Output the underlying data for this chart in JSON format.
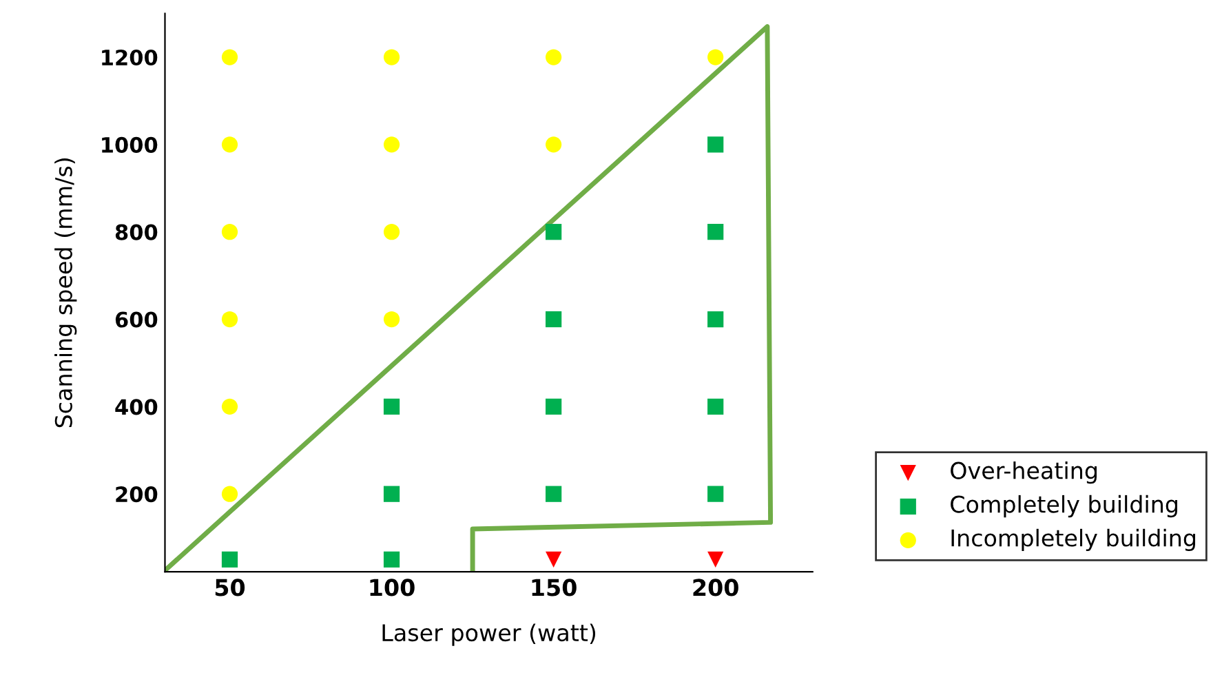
{
  "chart_data": {
    "type": "scatter",
    "xlabel": "Laser power (watt)",
    "ylabel": "Scanning speed (mm/s)",
    "xlim": [
      30,
      230
    ],
    "xticks": [
      50,
      100,
      150,
      200
    ],
    "ylim": [
      22,
      1300
    ],
    "yticks": [
      200,
      400,
      600,
      800,
      1000,
      1200
    ],
    "grid": false,
    "legend": "bottom right",
    "series": [
      {
        "name": "Over-heating",
        "color": "#ff0000",
        "marker": "triangle",
        "x": [
          150,
          200
        ],
        "values": [
          50,
          50
        ]
      },
      {
        "name": "Completely building",
        "color": "#00b050",
        "marker": "square",
        "x": [
          50,
          100,
          100,
          100,
          150,
          150,
          150,
          150,
          200,
          200,
          200,
          200,
          200
        ],
        "values": [
          50,
          50,
          200,
          400,
          200,
          400,
          600,
          800,
          200,
          400,
          600,
          800,
          1000
        ]
      },
      {
        "name": "Incompletely building",
        "color": "#ffff00",
        "marker": "circle",
        "x": [
          50,
          50,
          50,
          50,
          50,
          50,
          100,
          100,
          100,
          100,
          150,
          150,
          200
        ],
        "values": [
          200,
          400,
          600,
          800,
          1000,
          1200,
          600,
          800,
          1000,
          1200,
          1000,
          1200,
          1200
        ]
      },
      {
        "type": "line",
        "color": "#70ad47",
        "marker": "none",
        "line_style": "solid",
        "x": [
          30,
          216,
          217,
          125,
          125
        ],
        "values": [
          25,
          1270,
          135,
          120,
          25
        ]
      }
    ]
  }
}
